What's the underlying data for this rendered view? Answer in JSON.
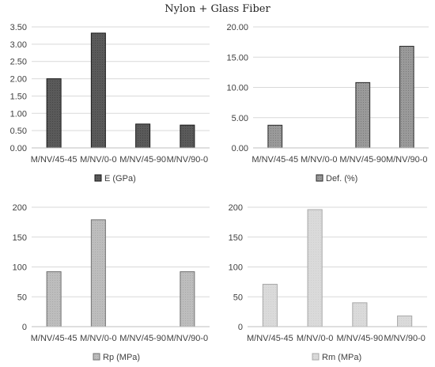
{
  "title": "Nylon + Glass Fiber",
  "chart_data": [
    {
      "type": "bar",
      "categories": [
        "M/NV/45-45",
        "M/NV/0-0",
        "M/NV/45-90",
        "M/NV/90-0"
      ],
      "series": [
        {
          "name": "E (GPa)",
          "values": [
            2.0,
            3.32,
            0.69,
            0.66
          ]
        }
      ],
      "ylim": [
        0,
        3.5
      ],
      "yticks": [
        "0.00",
        "0.50",
        "1.00",
        "1.50",
        "2.00",
        "2.50",
        "3.00",
        "3.50"
      ],
      "grid": true,
      "legend": "bottom",
      "fill": "#5a5a5a",
      "stroke": "#1a1a1a"
    },
    {
      "type": "bar",
      "categories": [
        "M/NV/45-45",
        "M/NV/0-0",
        "M/NV/45-90",
        "M/NV/90-0"
      ],
      "series": [
        {
          "name": "Def. (%)",
          "values": [
            3.75,
            0,
            10.8,
            16.8
          ]
        }
      ],
      "ylim": [
        0,
        20
      ],
      "yticks": [
        "0.00",
        "5.00",
        "10.00",
        "15.00",
        "20.00"
      ],
      "grid": true,
      "legend": "bottom",
      "fill": "#9a9a9a",
      "stroke": "#2a2a2a"
    },
    {
      "type": "bar",
      "categories": [
        "M/NV/45-45",
        "M/NV/0-0",
        "M/NV/45-90",
        "M/NV/90-0"
      ],
      "series": [
        {
          "name": "Rp (MPa)",
          "values": [
            92,
            179,
            0,
            92
          ]
        }
      ],
      "ylim": [
        0,
        200
      ],
      "yticks": [
        "0",
        "50",
        "100",
        "150",
        "200"
      ],
      "grid": true,
      "legend": "bottom",
      "fill": "#b9b9b9",
      "stroke": "#707070"
    },
    {
      "type": "bar",
      "categories": [
        "M/NV/45-45",
        "M/NV/0-0",
        "M/NV/45-90",
        "M/NV/90-0"
      ],
      "series": [
        {
          "name": "Rm (MPa)",
          "values": [
            71,
            196,
            40,
            18
          ]
        }
      ],
      "ylim": [
        0,
        200
      ],
      "yticks": [
        "0",
        "50",
        "100",
        "150",
        "200"
      ],
      "grid": true,
      "legend": "bottom",
      "fill": "#d9d9d9",
      "stroke": "#a8a8a8"
    }
  ]
}
